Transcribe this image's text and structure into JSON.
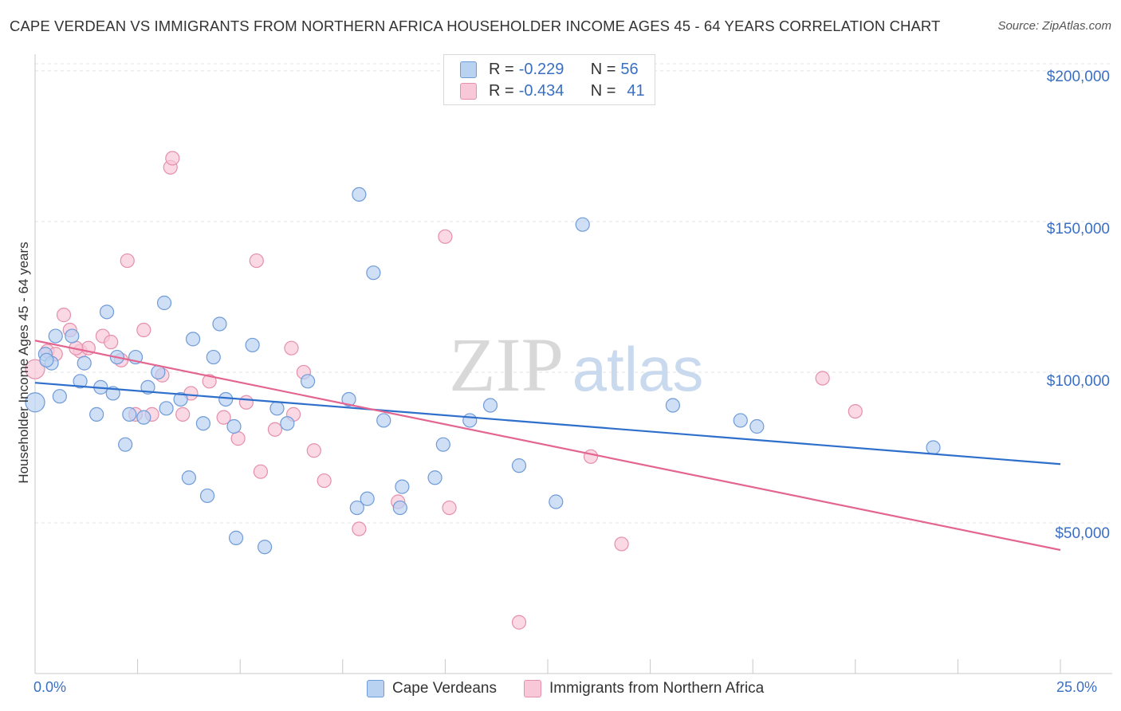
{
  "header": {
    "title": "CAPE VERDEAN VS IMMIGRANTS FROM NORTHERN AFRICA HOUSEHOLDER INCOME AGES 45 - 64 YEARS CORRELATION CHART",
    "source": "Source: ZipAtlas.com"
  },
  "watermark": {
    "zip": "ZIP",
    "atlas": "atlas"
  },
  "legend": {
    "rows": [
      {
        "r_label": "R =",
        "r_value": "-0.229",
        "n_label": "N =",
        "n_value": "56"
      },
      {
        "r_label": "R =",
        "r_value": "-0.434",
        "n_label": "N =",
        "n_value": "41"
      }
    ]
  },
  "colors": {
    "blue_fill": "#b9d2f2",
    "blue_stroke": "#6f9bd8",
    "blue_line": "#2f6fcc",
    "pink_fill": "#f8c8d8",
    "pink_stroke": "#e58fab",
    "pink_line": "#e36590",
    "axis_text": "#3a6fc4",
    "grid": "#e3e3e3"
  },
  "chart_data": {
    "type": "scatter",
    "title": "CAPE VERDEAN VS IMMIGRANTS FROM NORTHERN AFRICA HOUSEHOLDER INCOME AGES 45 - 64 YEARS CORRELATION CHART",
    "xlabel": "",
    "ylabel": "Householder Income Ages 45 - 64 years",
    "xlim": [
      0,
      25
    ],
    "ylim": [
      0,
      205000
    ],
    "x_tick_labels": [
      "0.0%",
      "25.0%"
    ],
    "y_ticks": [
      50000,
      100000,
      150000,
      200000
    ],
    "y_tick_labels": [
      "$50,000",
      "$100,000",
      "$150,000",
      "$200,000"
    ],
    "grid": true,
    "legend_position": "top-center",
    "series": [
      {
        "name": "Cape Verdeans",
        "r": -0.229,
        "n": 56,
        "trend": {
          "x": [
            0,
            25
          ],
          "y": [
            96500,
            69500
          ]
        },
        "points": [
          [
            0.0,
            90000
          ],
          [
            0.25,
            106000
          ],
          [
            0.4,
            103000
          ],
          [
            0.5,
            112000
          ],
          [
            0.6,
            92000
          ],
          [
            0.9,
            112000
          ],
          [
            1.2,
            103000
          ],
          [
            1.1,
            97000
          ],
          [
            1.5,
            86000
          ],
          [
            1.6,
            95000
          ],
          [
            1.75,
            120000
          ],
          [
            1.9,
            93000
          ],
          [
            2.0,
            105000
          ],
          [
            2.2,
            76000
          ],
          [
            2.3,
            86000
          ],
          [
            2.45,
            105000
          ],
          [
            2.65,
            85000
          ],
          [
            2.75,
            95000
          ],
          [
            3.0,
            100000
          ],
          [
            3.2,
            88000
          ],
          [
            3.15,
            123000
          ],
          [
            3.55,
            91000
          ],
          [
            3.75,
            65000
          ],
          [
            3.85,
            111000
          ],
          [
            4.1,
            83000
          ],
          [
            4.2,
            59000
          ],
          [
            4.35,
            105000
          ],
          [
            4.5,
            116000
          ],
          [
            4.65,
            91000
          ],
          [
            4.85,
            82000
          ],
          [
            4.9,
            45000
          ],
          [
            5.3,
            109000
          ],
          [
            5.6,
            42000
          ],
          [
            5.9,
            88000
          ],
          [
            6.15,
            83000
          ],
          [
            6.65,
            97000
          ],
          [
            7.65,
            91000
          ],
          [
            7.9,
            159000
          ],
          [
            7.85,
            55000
          ],
          [
            8.1,
            58000
          ],
          [
            8.25,
            133000
          ],
          [
            8.5,
            84000
          ],
          [
            8.9,
            55000
          ],
          [
            8.95,
            62000
          ],
          [
            9.75,
            65000
          ],
          [
            9.95,
            76000
          ],
          [
            10.6,
            84000
          ],
          [
            11.1,
            89000
          ],
          [
            11.8,
            69000
          ],
          [
            12.7,
            57000
          ],
          [
            13.35,
            149000
          ],
          [
            15.55,
            89000
          ],
          [
            17.2,
            84000
          ],
          [
            17.6,
            82000
          ],
          [
            21.9,
            75000
          ],
          [
            0.28,
            104000
          ]
        ]
      },
      {
        "name": "Immigrants from Northern Africa",
        "r": -0.434,
        "n": 41,
        "trend": {
          "x": [
            0,
            25
          ],
          "y": [
            110500,
            41000
          ]
        },
        "points": [
          [
            0.0,
            101000
          ],
          [
            0.3,
            107000
          ],
          [
            0.5,
            106000
          ],
          [
            0.7,
            119000
          ],
          [
            0.85,
            114000
          ],
          [
            1.1,
            107000
          ],
          [
            1.3,
            108000
          ],
          [
            1.65,
            112000
          ],
          [
            1.85,
            110000
          ],
          [
            2.1,
            104000
          ],
          [
            2.25,
            137000
          ],
          [
            2.45,
            86000
          ],
          [
            2.65,
            114000
          ],
          [
            2.85,
            86000
          ],
          [
            3.1,
            99000
          ],
          [
            3.3,
            168000
          ],
          [
            3.35,
            171000
          ],
          [
            3.6,
            86000
          ],
          [
            3.8,
            93000
          ],
          [
            4.25,
            97000
          ],
          [
            4.6,
            85000
          ],
          [
            4.95,
            78000
          ],
          [
            5.15,
            90000
          ],
          [
            5.4,
            137000
          ],
          [
            5.5,
            67000
          ],
          [
            5.85,
            81000
          ],
          [
            6.3,
            86000
          ],
          [
            6.25,
            108000
          ],
          [
            6.55,
            100000
          ],
          [
            6.8,
            74000
          ],
          [
            7.05,
            64000
          ],
          [
            7.9,
            48000
          ],
          [
            8.85,
            57000
          ],
          [
            10.0,
            145000
          ],
          [
            10.1,
            55000
          ],
          [
            11.8,
            17000
          ],
          [
            13.55,
            72000
          ],
          [
            14.3,
            43000
          ],
          [
            19.2,
            98000
          ],
          [
            20.0,
            87000
          ],
          [
            1.0,
            108000
          ]
        ]
      }
    ]
  },
  "bottom_legend": {
    "items": [
      "Cape Verdeans",
      "Immigrants from Northern Africa"
    ]
  }
}
